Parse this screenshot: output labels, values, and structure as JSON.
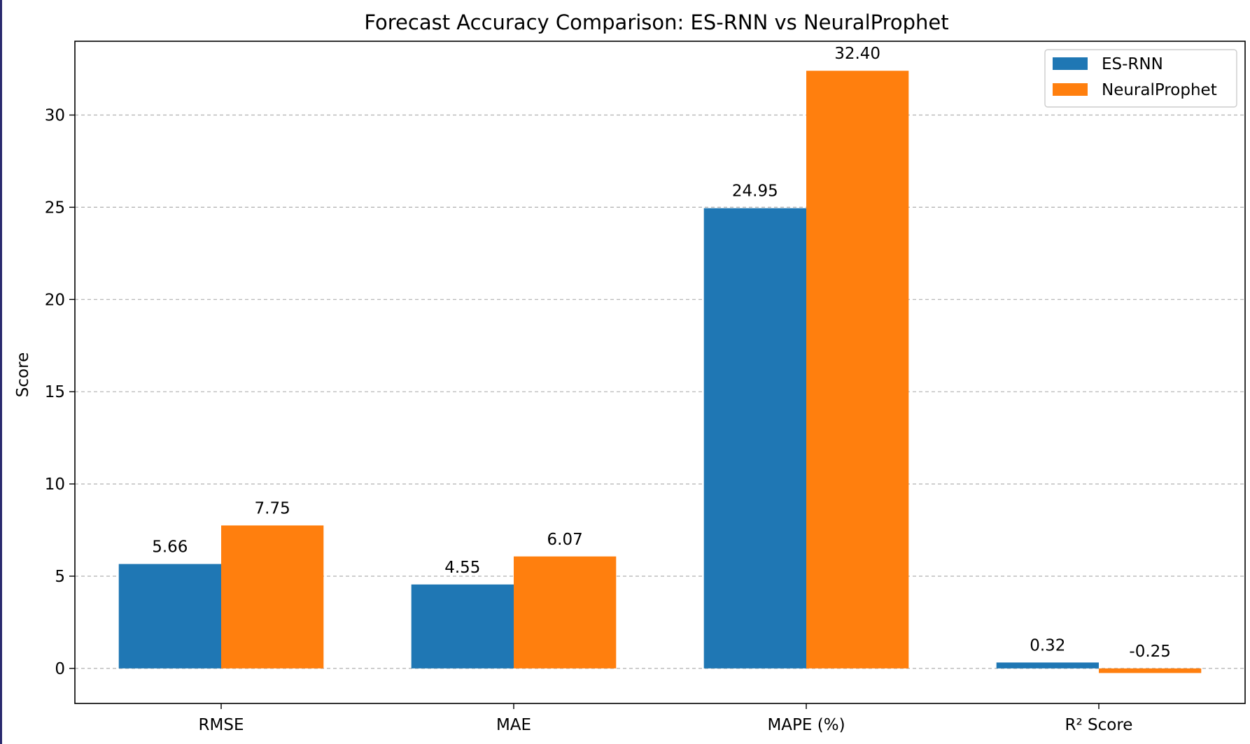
{
  "chart_data": {
    "type": "bar",
    "title": "Forecast Accuracy Comparison: ES-RNN vs NeuralProphet",
    "xlabel": "",
    "ylabel": "Score",
    "categories": [
      "RMSE",
      "MAE",
      "MAPE (%)",
      "R² Score"
    ],
    "series": [
      {
        "name": "ES-RNN",
        "color": "#1f77b4",
        "values": [
          5.66,
          4.55,
          24.95,
          0.32
        ],
        "labels": [
          "5.66",
          "4.55",
          "24.95",
          "0.32"
        ]
      },
      {
        "name": "NeuralProphet",
        "color": "#ff7f0e",
        "values": [
          7.75,
          6.07,
          32.4,
          -0.25
        ],
        "labels": [
          "7.75",
          "6.07",
          "32.40",
          "-0.25"
        ]
      }
    ],
    "ylim": [
      -1.9,
      34.0
    ],
    "yticks": [
      0,
      5,
      10,
      15,
      20,
      25,
      30
    ],
    "grid": "y-dashed",
    "legend": "top-right"
  }
}
